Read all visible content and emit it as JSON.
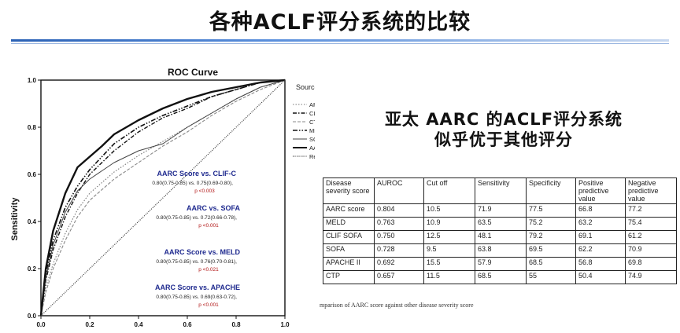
{
  "slide": {
    "title": "各种ACLF评分系统的比较"
  },
  "headline": {
    "line1": "亚太 AARC 的ACLF评分系统",
    "line2": "似乎优于其他评分"
  },
  "chart_data": {
    "type": "line",
    "title": "ROC Curve",
    "xlabel": "",
    "ylabel": "Sensitivity",
    "xlim": [
      0,
      1
    ],
    "ylim": [
      0,
      1
    ],
    "x_ticks": [
      "0.0",
      "0.2",
      "0.4",
      "0.6",
      "0.8",
      "1.0"
    ],
    "y_ticks": [
      "0.0",
      "0.2",
      "0.4",
      "0.6",
      "0.8",
      "1.0"
    ],
    "legend_title": "Source of the Curve",
    "legend_position": "right",
    "series": [
      {
        "name": "APACHE II",
        "style": "dotted",
        "width": 1.1,
        "x": [
          0,
          0.02,
          0.05,
          0.1,
          0.15,
          0.2,
          0.3,
          0.4,
          0.5,
          0.6,
          0.7,
          0.8,
          0.9,
          1.0
        ],
        "y": [
          0,
          0.12,
          0.22,
          0.35,
          0.45,
          0.52,
          0.61,
          0.68,
          0.74,
          0.8,
          0.86,
          0.92,
          0.97,
          1.0
        ]
      },
      {
        "name": "CLIF-SOFA",
        "style": "dashdot",
        "width": 1.4,
        "x": [
          0,
          0.02,
          0.05,
          0.1,
          0.15,
          0.2,
          0.3,
          0.4,
          0.5,
          0.6,
          0.7,
          0.8,
          0.9,
          1.0
        ],
        "y": [
          0,
          0.15,
          0.28,
          0.42,
          0.52,
          0.6,
          0.7,
          0.78,
          0.84,
          0.88,
          0.93,
          0.96,
          0.99,
          1.0
        ]
      },
      {
        "name": "CTP",
        "style": "dashed",
        "width": 1.1,
        "x": [
          0,
          0.02,
          0.05,
          0.1,
          0.15,
          0.2,
          0.3,
          0.4,
          0.5,
          0.6,
          0.7,
          0.8,
          0.9,
          1.0
        ],
        "y": [
          0,
          0.1,
          0.2,
          0.32,
          0.42,
          0.49,
          0.58,
          0.65,
          0.72,
          0.78,
          0.85,
          0.91,
          0.96,
          1.0
        ]
      },
      {
        "name": "MELD",
        "style": "dashdotdot",
        "width": 1.6,
        "x": [
          0,
          0.02,
          0.05,
          0.1,
          0.15,
          0.2,
          0.3,
          0.4,
          0.5,
          0.6,
          0.7,
          0.8,
          0.9,
          1.0
        ],
        "y": [
          0,
          0.18,
          0.32,
          0.46,
          0.55,
          0.62,
          0.73,
          0.8,
          0.85,
          0.89,
          0.93,
          0.96,
          0.99,
          1.0
        ]
      },
      {
        "name": "SOFA",
        "style": "solid",
        "width": 1.0,
        "x": [
          0,
          0.02,
          0.05,
          0.1,
          0.15,
          0.2,
          0.3,
          0.4,
          0.5,
          0.6,
          0.7,
          0.8,
          0.9,
          1.0
        ],
        "y": [
          0,
          0.16,
          0.3,
          0.44,
          0.53,
          0.58,
          0.65,
          0.7,
          0.73,
          0.8,
          0.86,
          0.92,
          0.97,
          1.0
        ]
      },
      {
        "name": "AARC Score",
        "style": "solid",
        "width": 2.4,
        "x": [
          0,
          0.02,
          0.05,
          0.1,
          0.15,
          0.25,
          0.3,
          0.4,
          0.5,
          0.6,
          0.7,
          0.8,
          0.9,
          1.0
        ],
        "y": [
          0,
          0.2,
          0.36,
          0.52,
          0.63,
          0.72,
          0.77,
          0.83,
          0.88,
          0.92,
          0.95,
          0.97,
          0.99,
          1.0
        ]
      },
      {
        "name": "Reference Line",
        "style": "reference",
        "width": 1.2,
        "x": [
          0,
          1
        ],
        "y": [
          0,
          1
        ]
      }
    ],
    "annotations": [
      {
        "id": "clif",
        "title": "AARC Score vs. CLIF-C",
        "stats": "0.80(0.75-0.85) vs. 0.75(0.69-0.80),",
        "p": "p <0.003"
      },
      {
        "id": "sofa",
        "title": "AARC vs. SOFA",
        "stats": "0.80(0.75-0.85) vs. 0.72(0.66-0.78),",
        "p": "p <0.001"
      },
      {
        "id": "meld",
        "title": "AARC Score vs. MELD",
        "stats": "0.80(0.75-0.85) vs. 0.76(0.70-0.81),",
        "p": "p <0.021"
      },
      {
        "id": "apache",
        "title": "AARC Score vs. APACHE",
        "stats": "0.80(0.75-0.85) vs. 0.69(0.63-0.72),",
        "p": "p <0.001"
      }
    ]
  },
  "table": {
    "headers": [
      "Disease severity score",
      "AUROC",
      "Cut off",
      "Sensitivity",
      "Specificity",
      "Positive predictive value",
      "Negative predictive value"
    ],
    "rows": [
      [
        "AARC score",
        "0.804",
        "10.5",
        "71.9",
        "77.5",
        "66.8",
        "77.2"
      ],
      [
        "MELD",
        "0.763",
        "10.9",
        "63.5",
        "75.2",
        "63.2",
        "75.4"
      ],
      [
        "CLIF SOFA",
        "0.750",
        "12.5",
        "48.1",
        "79.2",
        "69.1",
        "61.2"
      ],
      [
        "SOFA",
        "0.728",
        "9.5",
        "63.8",
        "69.5",
        "62.2",
        "70.9"
      ],
      [
        "APACHE II",
        "0.692",
        "15.5",
        "57.9",
        "68.5",
        "56.8",
        "69.8"
      ],
      [
        "CTP",
        "0.657",
        "11.5",
        "68.5",
        "55",
        "50.4",
        "74.9"
      ]
    ],
    "caption": "mparison of AARC score against other disease severity score"
  },
  "colors": {
    "accent_blue": "#2a61b5",
    "annotation_navy": "#1f2a8f",
    "p_red": "#b01010"
  }
}
